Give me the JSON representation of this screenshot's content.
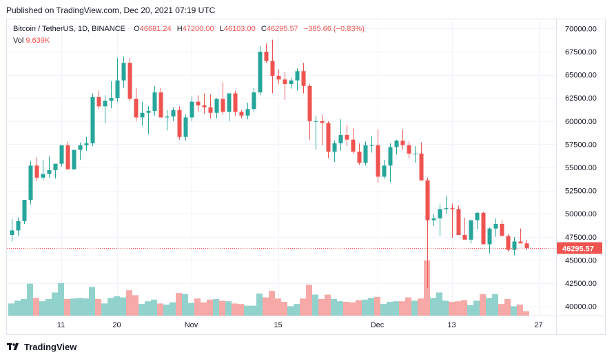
{
  "header": {
    "published": "Published on TradingView.com, Dec 20, 2021 07:19 UTC"
  },
  "legend": {
    "symbol": "Bitcoin / TetherUS, 1D, BINANCE",
    "o_label": "O",
    "o_value": "46681.24",
    "h_label": "H",
    "h_value": "47200.00",
    "l_label": "L",
    "l_value": "46103.00",
    "c_label": "C",
    "c_value": "46295.57",
    "change": "−385.66 (−0.83%)",
    "vol_label": "Vol",
    "vol_value": "9.639K"
  },
  "footer": {
    "brand": "TradingView",
    "logo_icon": "tradingview-logo-icon"
  },
  "colors": {
    "up": "#26a69a",
    "down": "#ef5350",
    "up_volume": "#92d2cc",
    "down_volume": "#f7a9a7"
  },
  "chart_data": {
    "type": "candlestick",
    "y_ticks": [
      "70000.00",
      "67500.00",
      "65000.00",
      "62500.00",
      "60000.00",
      "57500.00",
      "55000.00",
      "52500.00",
      "50000.00",
      "47500.00",
      "45000.00",
      "42500.00",
      "40000.00"
    ],
    "y_range": [
      39000,
      71000
    ],
    "x_ticks": [
      {
        "label": "11",
        "index": 8
      },
      {
        "label": "20",
        "index": 17
      },
      {
        "label": "Nov",
        "index": 29
      },
      {
        "label": "15",
        "index": 43
      },
      {
        "label": "Dec",
        "index": 59
      },
      {
        "label": "13",
        "index": 71
      },
      {
        "label": "27",
        "index": 85
      }
    ],
    "last_price": 46295.57,
    "last_price_label": "46295.57",
    "candles": [
      {
        "o": 47700,
        "h": 49400,
        "l": 47000,
        "c": 48200,
        "v": 2.2
      },
      {
        "o": 48200,
        "h": 49600,
        "l": 47600,
        "c": 49200,
        "v": 2.7
      },
      {
        "o": 49200,
        "h": 51500,
        "l": 48900,
        "c": 51500,
        "v": 3.0
      },
      {
        "o": 51500,
        "h": 55700,
        "l": 51000,
        "c": 55200,
        "v": 5.8
      },
      {
        "o": 55200,
        "h": 56100,
        "l": 53500,
        "c": 53900,
        "v": 3.2
      },
      {
        "o": 53900,
        "h": 55800,
        "l": 53600,
        "c": 54300,
        "v": 2.6
      },
      {
        "o": 54300,
        "h": 56200,
        "l": 53900,
        "c": 54700,
        "v": 3.0
      },
      {
        "o": 54700,
        "h": 55400,
        "l": 53800,
        "c": 55400,
        "v": 4.2
      },
      {
        "o": 55400,
        "h": 57400,
        "l": 55100,
        "c": 57400,
        "v": 5.9
      },
      {
        "o": 57400,
        "h": 57800,
        "l": 54800,
        "c": 54800,
        "v": 3.0
      },
      {
        "o": 54800,
        "h": 56900,
        "l": 54700,
        "c": 56900,
        "v": 3.1
      },
      {
        "o": 56900,
        "h": 57700,
        "l": 55800,
        "c": 57400,
        "v": 3.2
      },
      {
        "o": 57400,
        "h": 58300,
        "l": 56800,
        "c": 57600,
        "v": 3.1
      },
      {
        "o": 57600,
        "h": 63000,
        "l": 57300,
        "c": 62600,
        "v": 5.2
      },
      {
        "o": 62600,
        "h": 63300,
        "l": 61300,
        "c": 61600,
        "v": 3.0
      },
      {
        "o": 61600,
        "h": 62800,
        "l": 59800,
        "c": 62200,
        "v": 2.2
      },
      {
        "o": 62200,
        "h": 64300,
        "l": 61400,
        "c": 62500,
        "v": 3.2
      },
      {
        "o": 62500,
        "h": 66800,
        "l": 62100,
        "c": 64400,
        "v": 3.5
      },
      {
        "o": 64400,
        "h": 67000,
        "l": 63600,
        "c": 66300,
        "v": 3.3
      },
      {
        "o": 66300,
        "h": 66800,
        "l": 62200,
        "c": 62400,
        "v": 4.6
      },
      {
        "o": 62400,
        "h": 63600,
        "l": 60000,
        "c": 60400,
        "v": 3.7
      },
      {
        "o": 60400,
        "h": 62100,
        "l": 59500,
        "c": 60900,
        "v": 2.1
      },
      {
        "o": 60900,
        "h": 61600,
        "l": 58600,
        "c": 61100,
        "v": 2.6
      },
      {
        "o": 61100,
        "h": 63800,
        "l": 60600,
        "c": 63100,
        "v": 2.9
      },
      {
        "o": 63100,
        "h": 63600,
        "l": 60400,
        "c": 60400,
        "v": 2.2
      },
      {
        "o": 60400,
        "h": 61200,
        "l": 59000,
        "c": 60500,
        "v": 2.0
      },
      {
        "o": 60500,
        "h": 61500,
        "l": 60000,
        "c": 61200,
        "v": 2.4
      },
      {
        "o": 61200,
        "h": 61600,
        "l": 58000,
        "c": 58300,
        "v": 4.1
      },
      {
        "o": 58300,
        "h": 60700,
        "l": 57900,
        "c": 60400,
        "v": 3.9
      },
      {
        "o": 60400,
        "h": 62700,
        "l": 60000,
        "c": 62100,
        "v": 2.3
      },
      {
        "o": 62100,
        "h": 62800,
        "l": 61000,
        "c": 61700,
        "v": 3.1
      },
      {
        "o": 61700,
        "h": 63000,
        "l": 60800,
        "c": 61500,
        "v": 2.4
      },
      {
        "o": 61500,
        "h": 62900,
        "l": 60300,
        "c": 60900,
        "v": 2.9
      },
      {
        "o": 60900,
        "h": 62500,
        "l": 60300,
        "c": 62400,
        "v": 3.0
      },
      {
        "o": 62400,
        "h": 64200,
        "l": 60700,
        "c": 61000,
        "v": 2.7
      },
      {
        "o": 61000,
        "h": 63000,
        "l": 60000,
        "c": 63000,
        "v": 2.6
      },
      {
        "o": 63000,
        "h": 63300,
        "l": 60600,
        "c": 61000,
        "v": 2.2
      },
      {
        "o": 61000,
        "h": 61200,
        "l": 60300,
        "c": 60600,
        "v": 2.1
      },
      {
        "o": 60600,
        "h": 62000,
        "l": 60200,
        "c": 61300,
        "v": 1.8
      },
      {
        "o": 61300,
        "h": 63600,
        "l": 61000,
        "c": 63100,
        "v": 1.8
      },
      {
        "o": 63100,
        "h": 68100,
        "l": 62800,
        "c": 67500,
        "v": 4.0
      },
      {
        "o": 67500,
        "h": 68400,
        "l": 66300,
        "c": 66500,
        "v": 3.3
      },
      {
        "o": 66500,
        "h": 68800,
        "l": 63000,
        "c": 64900,
        "v": 4.5
      },
      {
        "o": 64900,
        "h": 65600,
        "l": 64000,
        "c": 64500,
        "v": 3.1
      },
      {
        "o": 64500,
        "h": 65300,
        "l": 62300,
        "c": 64000,
        "v": 2.5
      },
      {
        "o": 64000,
        "h": 64700,
        "l": 63500,
        "c": 64400,
        "v": 1.7
      },
      {
        "o": 64400,
        "h": 65700,
        "l": 63300,
        "c": 65400,
        "v": 2.1
      },
      {
        "o": 65400,
        "h": 66300,
        "l": 63000,
        "c": 63800,
        "v": 3.1
      },
      {
        "o": 63800,
        "h": 64000,
        "l": 58000,
        "c": 60000,
        "v": 5.6
      },
      {
        "o": 60000,
        "h": 60600,
        "l": 56900,
        "c": 60000,
        "v": 3.8
      },
      {
        "o": 60000,
        "h": 60700,
        "l": 57400,
        "c": 59800,
        "v": 3.0
      },
      {
        "o": 59800,
        "h": 60000,
        "l": 56000,
        "c": 56700,
        "v": 3.8
      },
      {
        "o": 56700,
        "h": 57900,
        "l": 55600,
        "c": 57600,
        "v": 3.0
      },
      {
        "o": 57600,
        "h": 60200,
        "l": 56800,
        "c": 58500,
        "v": 2.6
      },
      {
        "o": 58500,
        "h": 59600,
        "l": 57300,
        "c": 58000,
        "v": 2.5
      },
      {
        "o": 58000,
        "h": 59200,
        "l": 56500,
        "c": 56700,
        "v": 2.4
      },
      {
        "o": 56700,
        "h": 57600,
        "l": 55300,
        "c": 55500,
        "v": 2.8
      },
      {
        "o": 55500,
        "h": 57800,
        "l": 55200,
        "c": 57400,
        "v": 2.9
      },
      {
        "o": 57400,
        "h": 58400,
        "l": 56600,
        "c": 57400,
        "v": 3.2
      },
      {
        "o": 57400,
        "h": 59100,
        "l": 53300,
        "c": 54000,
        "v": 3.4
      },
      {
        "o": 54000,
        "h": 55800,
        "l": 53800,
        "c": 55200,
        "v": 2.1
      },
      {
        "o": 55200,
        "h": 57600,
        "l": 53400,
        "c": 57200,
        "v": 2.5
      },
      {
        "o": 57200,
        "h": 58000,
        "l": 56400,
        "c": 57900,
        "v": 2.6
      },
      {
        "o": 57900,
        "h": 59100,
        "l": 56900,
        "c": 57400,
        "v": 2.6
      },
      {
        "o": 57400,
        "h": 57800,
        "l": 56000,
        "c": 56500,
        "v": 3.3
      },
      {
        "o": 56500,
        "h": 57300,
        "l": 55500,
        "c": 56500,
        "v": 2.7
      },
      {
        "o": 56500,
        "h": 57700,
        "l": 53600,
        "c": 53600,
        "v": 3.1
      },
      {
        "o": 53600,
        "h": 53900,
        "l": 42000,
        "c": 49300,
        "v": 10.0
      },
      {
        "o": 49300,
        "h": 50000,
        "l": 48700,
        "c": 49500,
        "v": 3.2
      },
      {
        "o": 49500,
        "h": 51000,
        "l": 47600,
        "c": 50500,
        "v": 4.2
      },
      {
        "o": 50500,
        "h": 51900,
        "l": 50000,
        "c": 50600,
        "v": 2.7
      },
      {
        "o": 50600,
        "h": 51100,
        "l": 47400,
        "c": 50500,
        "v": 2.5
      },
      {
        "o": 50500,
        "h": 50900,
        "l": 47800,
        "c": 47700,
        "v": 2.6
      },
      {
        "o": 47700,
        "h": 49600,
        "l": 47300,
        "c": 47200,
        "v": 2.8
      },
      {
        "o": 47200,
        "h": 49300,
        "l": 46800,
        "c": 49300,
        "v": 1.9
      },
      {
        "o": 49300,
        "h": 50200,
        "l": 48300,
        "c": 50100,
        "v": 2.7
      },
      {
        "o": 50100,
        "h": 50200,
        "l": 46900,
        "c": 46700,
        "v": 3.9
      },
      {
        "o": 46700,
        "h": 48500,
        "l": 45700,
        "c": 48400,
        "v": 3.2
      },
      {
        "o": 48400,
        "h": 49500,
        "l": 47500,
        "c": 48900,
        "v": 3.9
      },
      {
        "o": 48900,
        "h": 49300,
        "l": 47600,
        "c": 47600,
        "v": 2.1
      },
      {
        "o": 47600,
        "h": 47800,
        "l": 45900,
        "c": 46100,
        "v": 3.0
      },
      {
        "o": 46100,
        "h": 47500,
        "l": 45500,
        "c": 47000,
        "v": 1.7
      },
      {
        "o": 47000,
        "h": 48400,
        "l": 46800,
        "c": 46800,
        "v": 2.0
      },
      {
        "o": 46800,
        "h": 47200,
        "l": 46100,
        "c": 46300,
        "v": 0.8
      }
    ]
  }
}
